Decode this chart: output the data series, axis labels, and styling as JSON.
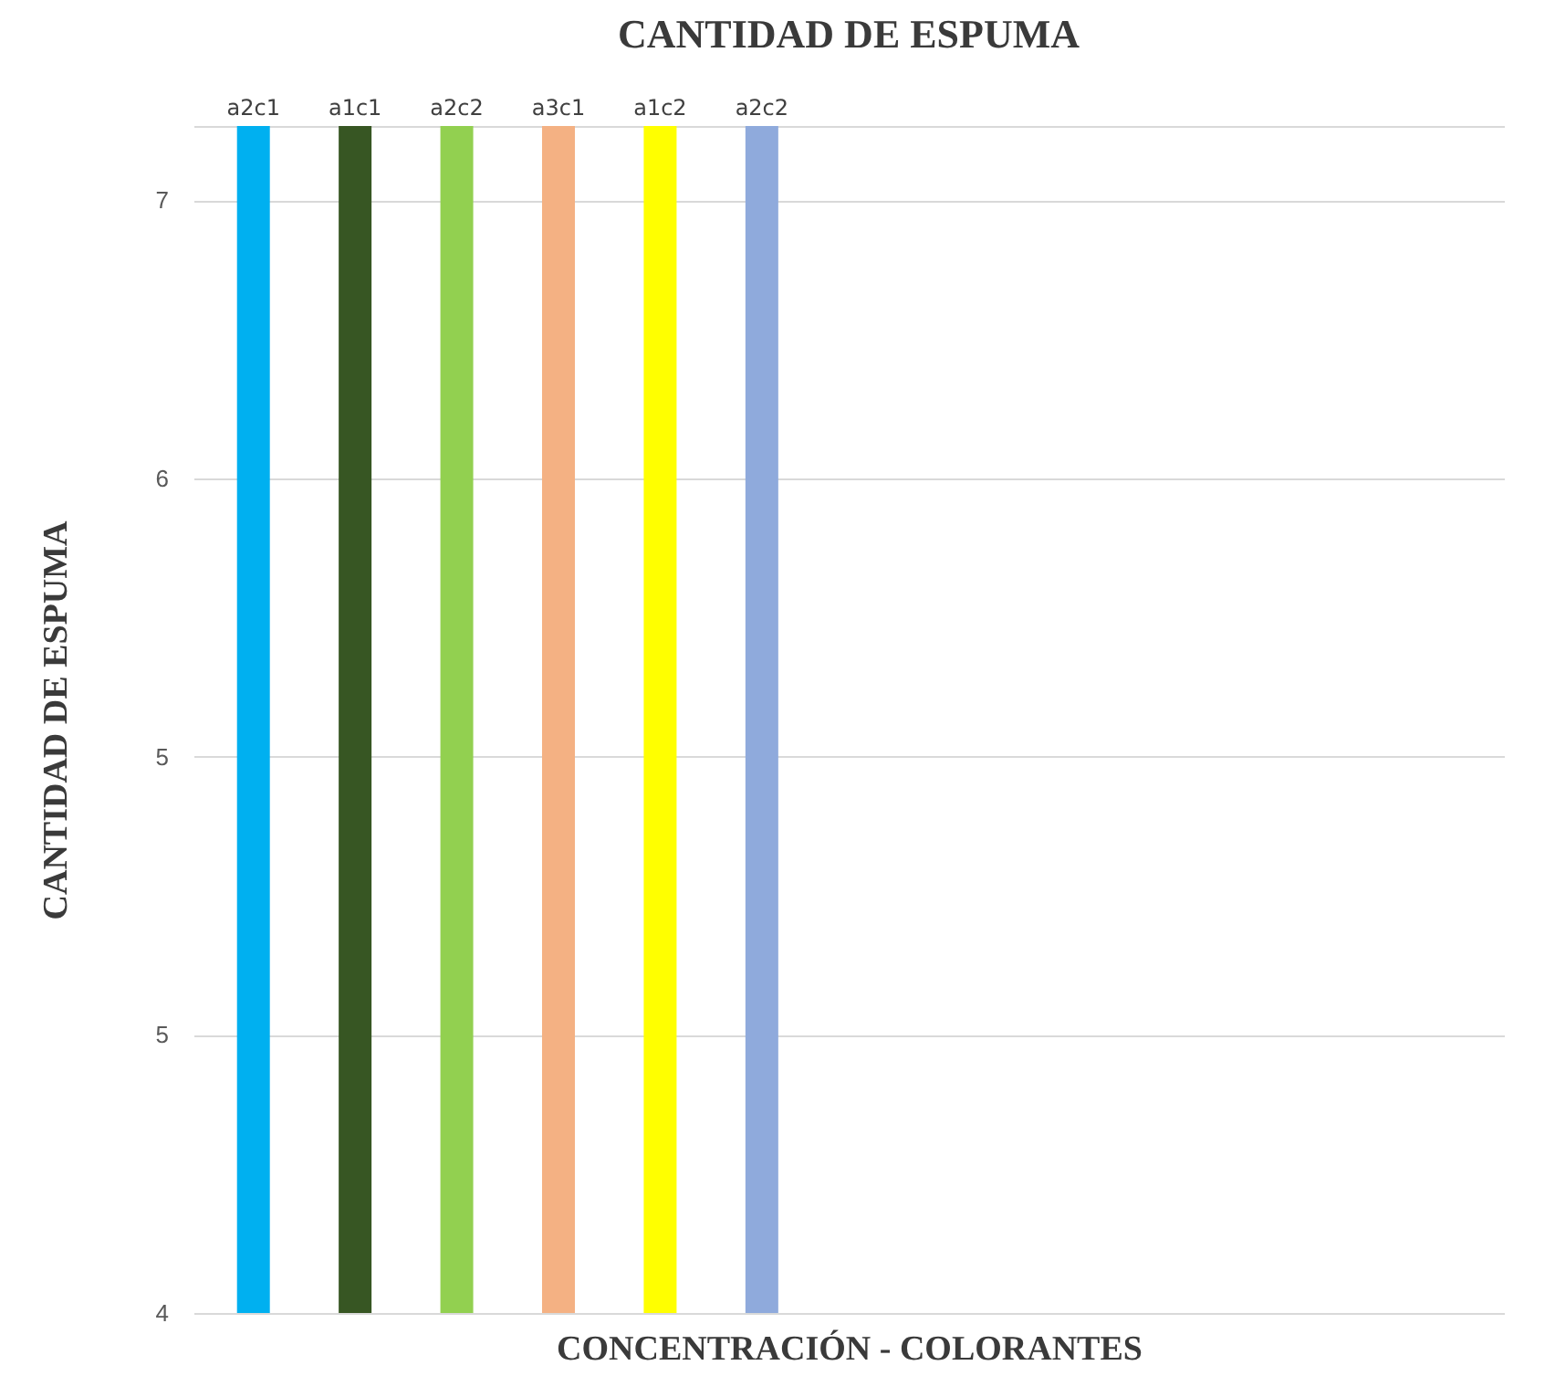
{
  "chart_data": {
    "type": "bar",
    "title": "CANTIDAD DE ESPUMA",
    "xlabel": "CONCENTRACIÓN  - COLORANTES",
    "ylabel": "CANTIDAD DE ESPUMA",
    "categories": [
      "a2c1",
      "a1c1",
      "a2c2",
      "a3c1",
      "a1c2",
      "a2c2"
    ],
    "values": [
      7.2,
      7.2,
      7.2,
      7.2,
      7.2,
      7.2
    ],
    "colors": [
      "#00b0f0",
      "#375623",
      "#92d050",
      "#f4b183",
      "#ffff00",
      "#8faadc"
    ],
    "ylim": [
      4,
      7.2
    ],
    "yticks": [
      4,
      {
        "value": 4.75,
        "label": "5"
      },
      {
        "value": 5.5,
        "label": "5"
      },
      {
        "value": 6.25,
        "label": "6"
      },
      7,
      {
        "value": 7.2,
        "label": null
      }
    ],
    "grid": "y",
    "tick_labels": "y"
  }
}
